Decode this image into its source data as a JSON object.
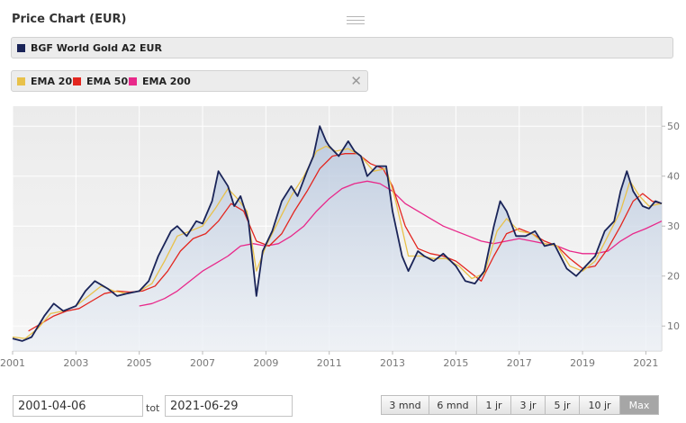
{
  "title": "Price Chart (EUR)",
  "series_legend": {
    "name": "BGF World Gold A2 EUR",
    "color": "#1a2458"
  },
  "ema_legend": [
    {
      "name": "EMA 20",
      "color": "#e8c14a"
    },
    {
      "name": "EMA 50",
      "color": "#e3261f"
    },
    {
      "name": "EMA 200",
      "color": "#e8288a"
    }
  ],
  "close_glyph": "✕",
  "date_from": "2001-04-06",
  "date_to": "2021-06-29",
  "tot_label": "tot",
  "range_buttons": [
    {
      "label": "3 mnd",
      "active": false
    },
    {
      "label": "6 mnd",
      "active": false
    },
    {
      "label": "1 jr",
      "active": false
    },
    {
      "label": "3 jr",
      "active": false
    },
    {
      "label": "5 jr",
      "active": false
    },
    {
      "label": "10 jr",
      "active": false
    },
    {
      "label": "Max",
      "active": true
    }
  ],
  "chart_data": {
    "type": "line",
    "x_ticks": [
      "2001",
      "2003",
      "2005",
      "2007",
      "2009",
      "2011",
      "2013",
      "2015",
      "2017",
      "2019",
      "2021"
    ],
    "y_ticks": [
      10,
      20,
      30,
      40,
      50
    ],
    "ylim": [
      5,
      54
    ],
    "xlim": [
      2001.0,
      2021.5
    ],
    "grid": true,
    "series": [
      {
        "name": "BGF World Gold A2 EUR",
        "color": "#1a2458",
        "x": [
          2001.0,
          2001.3,
          2001.6,
          2002.0,
          2002.3,
          2002.6,
          2003.0,
          2003.3,
          2003.6,
          2004.0,
          2004.3,
          2004.6,
          2005.0,
          2005.3,
          2005.6,
          2006.0,
          2006.2,
          2006.5,
          2006.8,
          2007.0,
          2007.3,
          2007.5,
          2007.8,
          2008.0,
          2008.2,
          2008.45,
          2008.7,
          2008.9,
          2009.2,
          2009.5,
          2009.8,
          2010.0,
          2010.3,
          2010.5,
          2010.7,
          2010.9,
          2011.0,
          2011.3,
          2011.6,
          2011.8,
          2012.0,
          2012.2,
          2012.5,
          2012.8,
          2013.0,
          2013.3,
          2013.5,
          2013.8,
          2014.0,
          2014.3,
          2014.6,
          2015.0,
          2015.3,
          2015.6,
          2015.9,
          2016.2,
          2016.4,
          2016.6,
          2016.9,
          2017.2,
          2017.5,
          2017.8,
          2018.1,
          2018.5,
          2018.8,
          2019.1,
          2019.4,
          2019.7,
          2020.0,
          2020.2,
          2020.4,
          2020.6,
          2020.9,
          2021.1,
          2021.3,
          2021.5
        ],
        "values": [
          7.5,
          7.0,
          7.8,
          12.0,
          14.5,
          13.0,
          14.0,
          17.0,
          19.0,
          17.5,
          16.0,
          16.5,
          17.0,
          19.0,
          24.0,
          29.0,
          30.0,
          28.0,
          31.0,
          30.5,
          35.0,
          41.0,
          38.0,
          34.0,
          36.0,
          31.0,
          16.0,
          25.0,
          29.0,
          35.0,
          38.0,
          36.0,
          41.0,
          44.0,
          50.0,
          47.0,
          46.0,
          44.0,
          47.0,
          45.0,
          44.0,
          40.0,
          42.0,
          42.0,
          33.0,
          24.0,
          21.0,
          25.0,
          24.0,
          23.0,
          24.5,
          22.0,
          19.0,
          18.5,
          21.0,
          30.0,
          35.0,
          33.0,
          28.0,
          28.0,
          29.0,
          26.0,
          26.5,
          21.5,
          20.0,
          22.0,
          24.0,
          29.0,
          31.0,
          37.0,
          41.0,
          37.0,
          34.0,
          33.5,
          35.0,
          34.5
        ]
      },
      {
        "name": "EMA 20",
        "color": "#e8c14a",
        "x": [
          2001.0,
          2001.4,
          2001.8,
          2002.2,
          2002.6,
          2003.0,
          2003.4,
          2003.8,
          2004.2,
          2004.6,
          2005.0,
          2005.4,
          2005.8,
          2006.2,
          2006.6,
          2007.0,
          2007.4,
          2007.8,
          2008.1,
          2008.4,
          2008.7,
          2009.0,
          2009.4,
          2009.8,
          2010.2,
          2010.6,
          2010.9,
          2011.2,
          2011.6,
          2012.0,
          2012.4,
          2012.8,
          2013.1,
          2013.5,
          2013.9,
          2014.3,
          2014.7,
          2015.1,
          2015.5,
          2015.9,
          2016.3,
          2016.6,
          2017.0,
          2017.4,
          2017.8,
          2018.2,
          2018.6,
          2019.0,
          2019.4,
          2019.8,
          2020.2,
          2020.5,
          2020.8,
          2021.1,
          2021.5
        ],
        "values": [
          7.8,
          7.5,
          9.5,
          12.5,
          13.0,
          14.0,
          16.0,
          18.0,
          17.0,
          16.5,
          17.0,
          18.5,
          23.0,
          28.0,
          29.0,
          30.0,
          33.5,
          37.5,
          35.5,
          33.0,
          21.0,
          26.0,
          31.0,
          36.0,
          40.0,
          45.0,
          46.0,
          45.0,
          45.5,
          44.0,
          41.0,
          41.5,
          35.0,
          24.0,
          24.0,
          23.5,
          23.5,
          22.0,
          19.5,
          20.5,
          29.0,
          31.5,
          29.0,
          28.5,
          26.5,
          26.0,
          22.0,
          21.0,
          23.0,
          28.0,
          33.0,
          39.0,
          36.0,
          34.0,
          34.5
        ]
      },
      {
        "name": "EMA 50",
        "color": "#e3261f",
        "x": [
          2001.5,
          2001.9,
          2002.3,
          2002.7,
          2003.1,
          2003.5,
          2003.9,
          2004.3,
          2004.7,
          2005.1,
          2005.5,
          2005.9,
          2006.3,
          2006.7,
          2007.1,
          2007.5,
          2007.9,
          2008.3,
          2008.7,
          2009.1,
          2009.5,
          2009.9,
          2010.3,
          2010.7,
          2011.1,
          2011.5,
          2011.9,
          2012.3,
          2012.7,
          2013.0,
          2013.4,
          2013.8,
          2014.2,
          2014.6,
          2015.0,
          2015.4,
          2015.8,
          2016.2,
          2016.6,
          2017.0,
          2017.4,
          2017.8,
          2018.2,
          2018.6,
          2019.0,
          2019.4,
          2019.8,
          2020.2,
          2020.6,
          2020.9,
          2021.2,
          2021.5
        ],
        "values": [
          9.0,
          10.5,
          12.0,
          13.0,
          13.5,
          15.0,
          16.5,
          17.0,
          16.8,
          17.0,
          18.0,
          21.0,
          25.0,
          27.5,
          28.5,
          31.0,
          34.5,
          33.0,
          27.0,
          26.0,
          28.5,
          33.0,
          37.0,
          41.5,
          44.0,
          44.5,
          44.5,
          42.5,
          41.5,
          38.0,
          30.0,
          25.5,
          24.5,
          24.0,
          23.0,
          21.0,
          19.0,
          24.0,
          28.5,
          29.5,
          28.5,
          27.0,
          26.0,
          23.5,
          21.5,
          22.0,
          25.5,
          30.0,
          35.0,
          36.5,
          35.0,
          34.5
        ]
      },
      {
        "name": "EMA 200",
        "color": "#e8288a",
        "x": [
          2005.0,
          2005.4,
          2005.8,
          2006.2,
          2006.6,
          2007.0,
          2007.4,
          2007.8,
          2008.2,
          2008.6,
          2009.0,
          2009.4,
          2009.8,
          2010.2,
          2010.6,
          2011.0,
          2011.4,
          2011.8,
          2012.2,
          2012.6,
          2013.0,
          2013.4,
          2013.8,
          2014.2,
          2014.6,
          2015.0,
          2015.4,
          2015.8,
          2016.2,
          2016.6,
          2017.0,
          2017.4,
          2017.8,
          2018.2,
          2018.6,
          2019.0,
          2019.4,
          2019.8,
          2020.2,
          2020.6,
          2021.0,
          2021.5
        ],
        "values": [
          14.0,
          14.5,
          15.5,
          17.0,
          19.0,
          21.0,
          22.5,
          24.0,
          26.0,
          26.5,
          26.0,
          26.5,
          28.0,
          30.0,
          33.0,
          35.5,
          37.5,
          38.5,
          39.0,
          38.5,
          37.0,
          34.5,
          33.0,
          31.5,
          30.0,
          29.0,
          28.0,
          27.0,
          26.5,
          27.0,
          27.5,
          27.0,
          26.5,
          26.0,
          25.0,
          24.5,
          24.5,
          25.0,
          27.0,
          28.5,
          29.5,
          31.0
        ]
      }
    ]
  }
}
